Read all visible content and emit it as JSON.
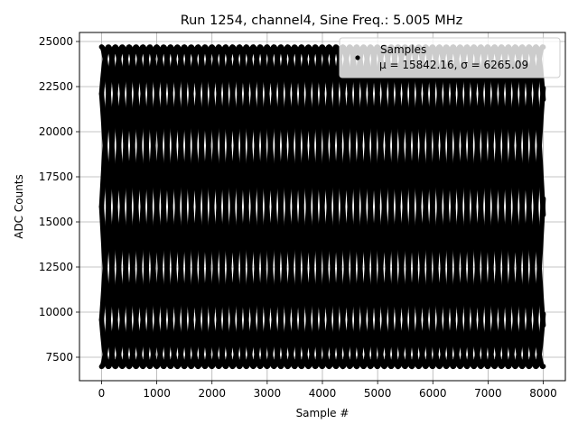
{
  "chart_data": {
    "type": "scatter",
    "title": "Run 1254, channel4, Sine Freq.: 5.005 MHz",
    "xlabel": "Sample #",
    "ylabel": "ADC Counts",
    "xlim": [
      -400,
      8400
    ],
    "ylim": [
      6200,
      25500
    ],
    "xticks": [
      0,
      1000,
      2000,
      3000,
      4000,
      5000,
      6000,
      7000,
      8000
    ],
    "yticks": [
      7500,
      10000,
      12500,
      15000,
      17500,
      20000,
      22500,
      25000
    ],
    "xtick_labels": [
      "0",
      "1000",
      "2000",
      "3000",
      "4000",
      "5000",
      "6000",
      "7000",
      "8000"
    ],
    "ytick_labels": [
      "7500",
      "10000",
      "12500",
      "15000",
      "17500",
      "20000",
      "22500",
      "25000"
    ],
    "grid": true,
    "legend_position": "upper-right",
    "series": [
      {
        "name": "Samples",
        "color": "#000000",
        "marker": "circle",
        "signal": {
          "offset": 15842.16,
          "amplitude": 8860,
          "cycles_per_sample": 0.001001,
          "phase_branches": 8,
          "x_start": 0,
          "x_end": 8000
        }
      }
    ],
    "legend": {
      "series_label": "Samples",
      "stats_text": "μ = 15842.16, σ = 6265.09"
    }
  }
}
